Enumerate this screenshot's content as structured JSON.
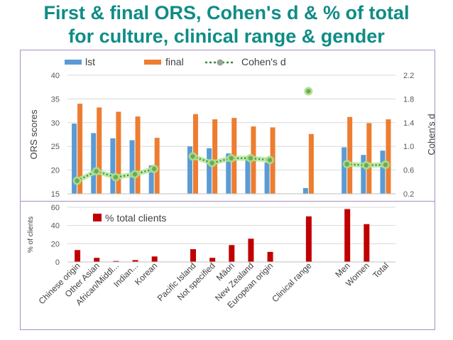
{
  "page": {
    "title_line1": "First & final ORS, Cohen's d & % of total",
    "title_line2": "for culture, clinical range & gender"
  },
  "chart_data": [
    {
      "type": "bar+line",
      "title": "",
      "legend": [
        "lst",
        "final",
        "Cohen's d"
      ],
      "legend_position": "top",
      "ylabel": "ORS scores",
      "y2label": "Cohen's d",
      "ylim": [
        15,
        40
      ],
      "yticks": [
        15,
        20,
        25,
        30,
        35,
        40
      ],
      "y2lim": [
        0.2,
        2.2
      ],
      "y2ticks": [
        "0.2",
        "0.6",
        "1.0",
        "1.4",
        "1.8",
        "2.2"
      ],
      "grid": true,
      "categories": [
        "Chinese origin",
        "Other Asian",
        "African/Middl...",
        "Indian...",
        "Korean",
        "",
        "Pacific Island",
        "Not specified",
        "Māori",
        "New Zealand",
        "European origin",
        "",
        "Clinical range",
        "",
        "Men",
        "Women",
        "Total"
      ],
      "series": [
        {
          "name": "lst",
          "color": "#5b9bd5",
          "values": [
            29.8,
            27.8,
            26.7,
            26.3,
            21.0,
            null,
            25.0,
            24.6,
            23.5,
            22.6,
            21.6,
            null,
            16.2,
            null,
            24.8,
            23.2,
            24.1
          ]
        },
        {
          "name": "final",
          "color": "#ed7d31",
          "values": [
            34.0,
            33.2,
            32.3,
            31.3,
            26.8,
            null,
            31.8,
            30.7,
            31.0,
            29.2,
            29.0,
            null,
            27.6,
            null,
            31.2,
            29.9,
            30.7
          ]
        },
        {
          "name": "Cohen's d",
          "color": "#6abf4b",
          "axis": "y2",
          "values": [
            0.42,
            0.58,
            0.48,
            0.53,
            0.62,
            null,
            0.83,
            0.72,
            0.8,
            0.8,
            0.77,
            null,
            1.93,
            null,
            0.7,
            0.68,
            0.69
          ]
        }
      ]
    },
    {
      "type": "bar",
      "title": "",
      "legend": [
        "% total clients"
      ],
      "ylabel": "% of clients",
      "ylim": [
        0,
        60
      ],
      "yticks": [
        0,
        20,
        40,
        60
      ],
      "grid": true,
      "categories": [
        "Chinese origin",
        "Other Asian",
        "African/Middl...",
        "Indian...",
        "Korean",
        "",
        "Pacific Island",
        "Not specified",
        "Māori",
        "New Zealand",
        "European origin",
        "",
        "Clinical range",
        "",
        "Men",
        "Women",
        "Total"
      ],
      "series": [
        {
          "name": "% total clients",
          "color": "#c00000",
          "values": [
            13,
            4.5,
            1,
            2,
            6,
            null,
            14,
            4.5,
            18.5,
            25.5,
            11,
            null,
            50,
            null,
            58,
            41.5,
            null
          ]
        }
      ]
    }
  ]
}
